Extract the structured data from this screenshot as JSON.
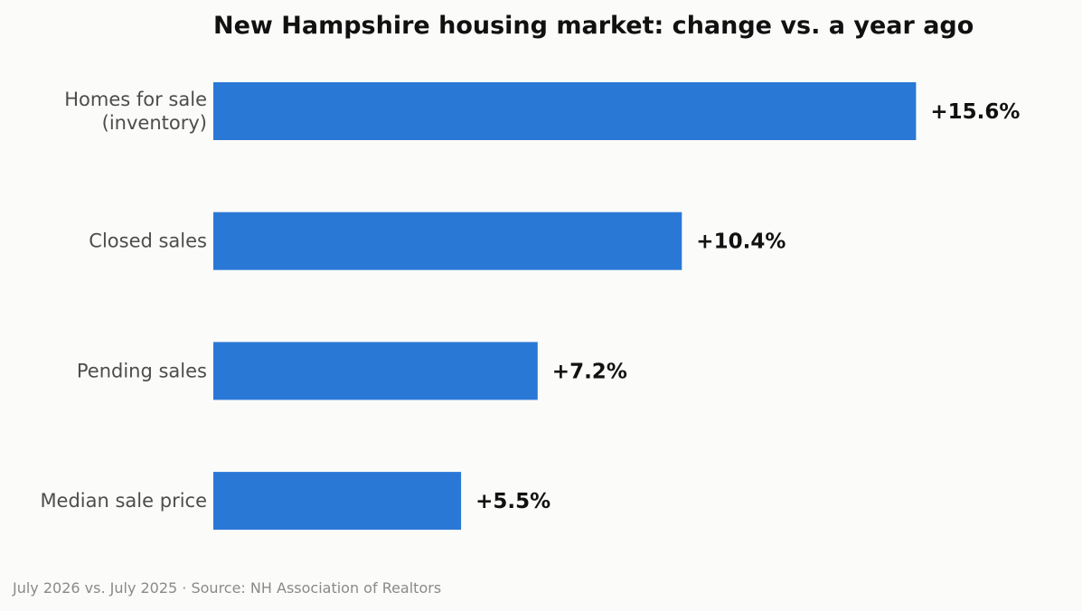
{
  "chart_data": {
    "type": "bar",
    "orientation": "horizontal",
    "title": "New Hampshire housing market: change vs. a year ago",
    "categories": [
      [
        "Homes for sale",
        "(inventory)"
      ],
      [
        "Closed sales"
      ],
      [
        "Pending sales"
      ],
      [
        "Median sale price"
      ]
    ],
    "values": [
      15.6,
      10.4,
      7.2,
      5.5
    ],
    "value_labels": [
      "+15.6%",
      "+10.4%",
      "+7.2%",
      "+5.5%"
    ],
    "unit": "%",
    "bar_color": "#2a78d6",
    "xlim": [
      0,
      18.2
    ],
    "grid": false,
    "legend": "none",
    "footnote": "July 2026 vs. July 2025 · Source: NH Association of Realtors"
  }
}
